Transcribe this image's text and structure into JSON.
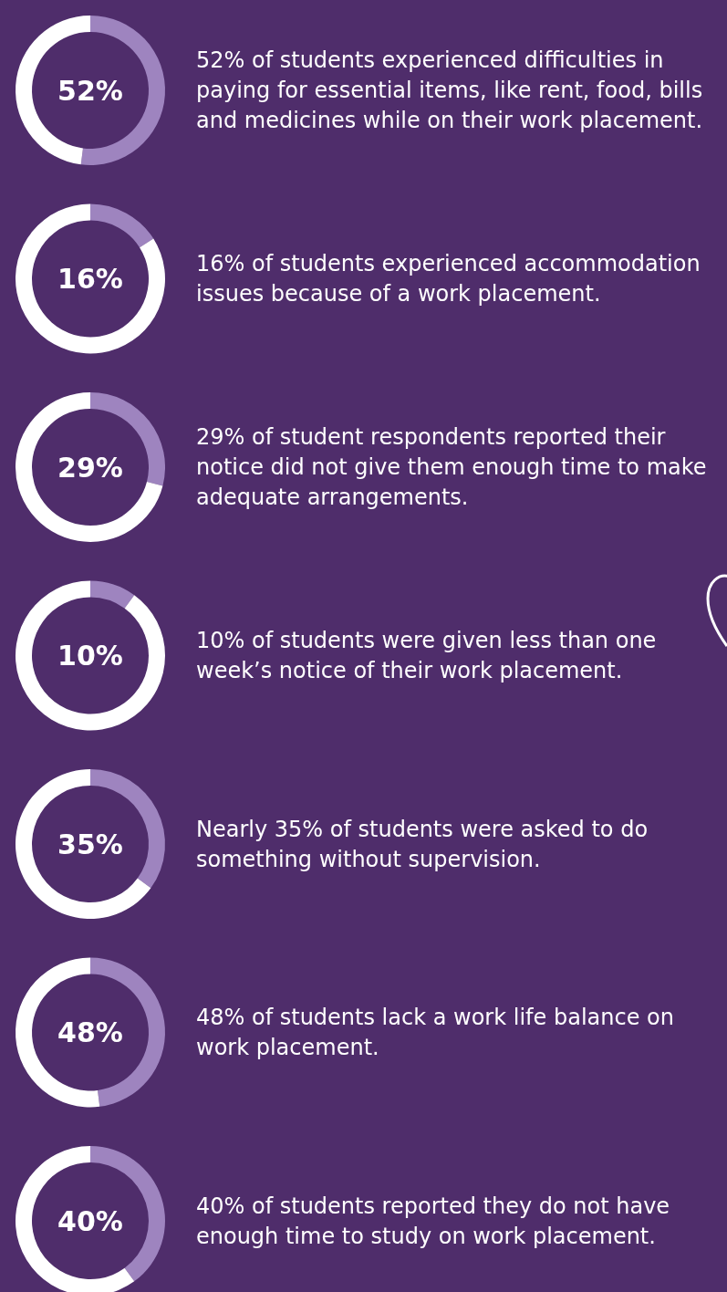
{
  "chart_data": [
    {
      "type": "donut",
      "title": "52%",
      "categories": [
        null,
        null
      ],
      "values": [
        52,
        48
      ],
      "colors": [
        "#9e84bf",
        "#ffffff"
      ],
      "annotations": [
        "52% of students experienced difficulties in paying for essential items, like rent, food, bills and medicines while on their work placement."
      ]
    },
    {
      "type": "donut",
      "title": "16%",
      "categories": [
        null,
        null
      ],
      "values": [
        16,
        84
      ],
      "colors": [
        "#9e84bf",
        "#ffffff"
      ],
      "annotations": [
        "16% of students experienced accommodation issues because of a work placement."
      ]
    },
    {
      "type": "donut",
      "title": "29%",
      "categories": [
        null,
        null
      ],
      "values": [
        29,
        71
      ],
      "colors": [
        "#9e84bf",
        "#ffffff"
      ],
      "annotations": [
        "29% of student respondents reported their notice did not give them enough time to make adequate arrangements."
      ]
    },
    {
      "type": "donut",
      "title": "10%",
      "categories": [
        null,
        null
      ],
      "values": [
        10,
        90
      ],
      "colors": [
        "#9e84bf",
        "#ffffff"
      ],
      "annotations": [
        "10% of students were given less than one week’s notice of their work placement."
      ]
    },
    {
      "type": "donut",
      "title": "35%",
      "categories": [
        null,
        null
      ],
      "values": [
        35,
        65
      ],
      "colors": [
        "#9e84bf",
        "#ffffff"
      ],
      "annotations": [
        "Nearly 35% of students were asked to do something without supervision."
      ]
    },
    {
      "type": "donut",
      "title": "48%",
      "categories": [
        null,
        null
      ],
      "values": [
        48,
        52
      ],
      "colors": [
        "#9e84bf",
        "#ffffff"
      ],
      "annotations": [
        "48% of students lack a work life balance on work placement."
      ]
    },
    {
      "type": "donut",
      "title": "40%",
      "categories": [
        null,
        null
      ],
      "values": [
        40,
        60
      ],
      "colors": [
        "#9e84bf",
        "#ffffff"
      ],
      "annotations": [
        "40% of students reported they do not have enough time to study on work placement."
      ]
    }
  ]
}
